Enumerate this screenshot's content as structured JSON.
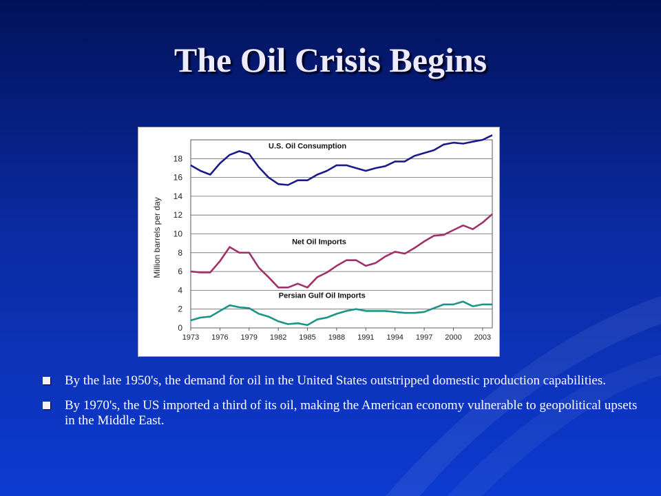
{
  "slide": {
    "title": "The Oil Crisis Begins",
    "accent_color": "#0d3bd0",
    "bullets": [
      "By the late 1950's, the demand for oil in the United States outstripped domestic production capabilities.",
      "By 1970's, the US imported a third of its oil, making the American economy vulnerable to geopolitical upsets in the Middle East."
    ]
  },
  "chart_data": {
    "type": "line",
    "title": "",
    "xlabel": "",
    "ylabel": "Million barrels per day",
    "xlim": [
      1973,
      2004
    ],
    "ylim": [
      0,
      20
    ],
    "yticks": [
      0,
      2,
      4,
      6,
      8,
      10,
      12,
      14,
      16,
      18
    ],
    "xticks": [
      1973,
      1976,
      1979,
      1982,
      1985,
      1988,
      1991,
      1994,
      1997,
      2000,
      2003
    ],
    "grid": true,
    "x": [
      1973,
      1974,
      1975,
      1976,
      1977,
      1978,
      1979,
      1980,
      1981,
      1982,
      1983,
      1984,
      1985,
      1986,
      1987,
      1988,
      1989,
      1990,
      1991,
      1992,
      1993,
      1994,
      1995,
      1996,
      1997,
      1998,
      1999,
      2000,
      2001,
      2002,
      2003,
      2004
    ],
    "series": [
      {
        "name": "U.S. Oil Consumption",
        "color": "#1a1a8c",
        "values": [
          17.3,
          16.7,
          16.3,
          17.5,
          18.4,
          18.8,
          18.5,
          17.1,
          16.0,
          15.3,
          15.2,
          15.7,
          15.7,
          16.3,
          16.7,
          17.3,
          17.3,
          17.0,
          16.7,
          17.0,
          17.2,
          17.7,
          17.7,
          18.3,
          18.6,
          18.9,
          19.5,
          19.7,
          19.6,
          19.8,
          20.0,
          20.5
        ]
      },
      {
        "name": "Net Oil Imports",
        "color": "#a0306a",
        "values": [
          6.0,
          5.9,
          5.9,
          7.1,
          8.6,
          8.0,
          8.0,
          6.4,
          5.4,
          4.3,
          4.3,
          4.7,
          4.3,
          5.4,
          5.9,
          6.6,
          7.2,
          7.2,
          6.6,
          6.9,
          7.6,
          8.1,
          7.9,
          8.5,
          9.2,
          9.8,
          9.9,
          10.4,
          10.9,
          10.5,
          11.2,
          12.1
        ]
      },
      {
        "name": "Persian Gulf Oil Imports",
        "color": "#1a9488",
        "values": [
          0.8,
          1.1,
          1.2,
          1.8,
          2.4,
          2.2,
          2.1,
          1.5,
          1.2,
          0.7,
          0.4,
          0.5,
          0.3,
          0.9,
          1.1,
          1.5,
          1.8,
          2.0,
          1.8,
          1.8,
          1.8,
          1.7,
          1.6,
          1.6,
          1.7,
          2.1,
          2.5,
          2.5,
          2.8,
          2.3,
          2.5,
          2.5
        ]
      }
    ],
    "annotations": [
      {
        "text": "U.S. Oil Consumption",
        "x": 1985,
        "y": 19.1
      },
      {
        "text": "Net Oil Imports",
        "x": 1986.2,
        "y": 8.9
      },
      {
        "text": "Persian Gulf Oil Imports",
        "x": 1986.5,
        "y": 3.2
      }
    ]
  }
}
